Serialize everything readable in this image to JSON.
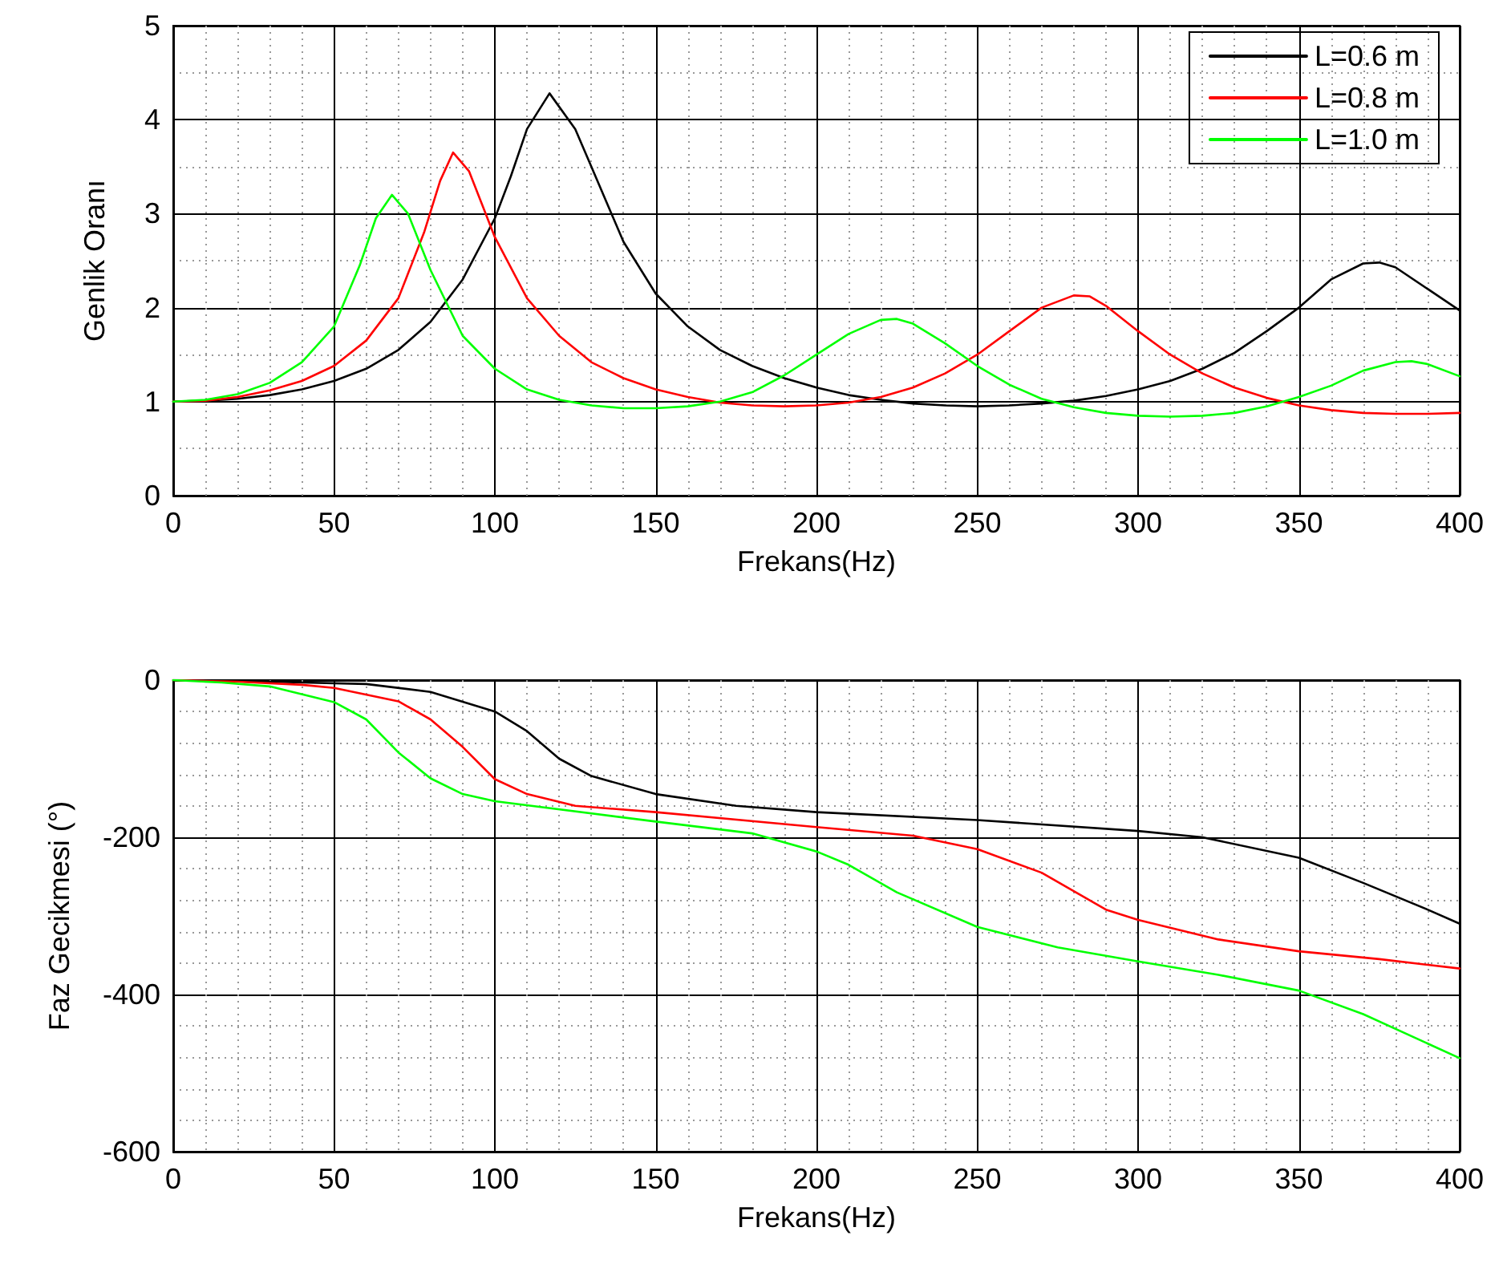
{
  "chart_data": [
    {
      "type": "line",
      "xlabel": "Frekans(Hz)",
      "ylabel": "Genlik Oranı",
      "xlim": [
        0,
        400
      ],
      "xticks": [
        0,
        50,
        100,
        150,
        200,
        250,
        300,
        350,
        400
      ],
      "ylim": [
        0,
        5
      ],
      "yticks": [
        0,
        1,
        2,
        3,
        4,
        5
      ],
      "grid": true,
      "legend": "top right",
      "marker": "none",
      "line_style": "solid",
      "series": [
        {
          "name": "L=0.6 m",
          "color": "#000000",
          "x": [
            0,
            10,
            20,
            30,
            40,
            50,
            60,
            70,
            80,
            90,
            100,
            105,
            110,
            117,
            125,
            130,
            140,
            150,
            160,
            170,
            180,
            190,
            200,
            210,
            220,
            230,
            240,
            250,
            260,
            270,
            280,
            290,
            300,
            310,
            320,
            330,
            340,
            350,
            360,
            370,
            375,
            380,
            390,
            400
          ],
          "values": [
            1,
            1.01,
            1.03,
            1.07,
            1.13,
            1.22,
            1.35,
            1.55,
            1.85,
            2.3,
            2.95,
            3.4,
            3.9,
            4.28,
            3.9,
            3.5,
            2.7,
            2.15,
            1.8,
            1.55,
            1.38,
            1.25,
            1.15,
            1.07,
            1.02,
            0.98,
            0.96,
            0.95,
            0.96,
            0.98,
            1.01,
            1.06,
            1.13,
            1.22,
            1.35,
            1.52,
            1.75,
            2,
            2.3,
            2.47,
            2.48,
            2.43,
            2.2,
            1.97
          ]
        },
        {
          "name": "L=0.8 m",
          "color": "#ff0000",
          "x": [
            0,
            10,
            20,
            30,
            40,
            50,
            60,
            70,
            78,
            83,
            87,
            92,
            100,
            110,
            120,
            130,
            140,
            150,
            160,
            170,
            180,
            190,
            200,
            210,
            220,
            230,
            240,
            250,
            260,
            270,
            280,
            285,
            290,
            300,
            310,
            320,
            330,
            340,
            350,
            360,
            370,
            380,
            390,
            400
          ],
          "values": [
            1,
            1.01,
            1.05,
            1.12,
            1.22,
            1.38,
            1.65,
            2.1,
            2.8,
            3.35,
            3.65,
            3.45,
            2.75,
            2.1,
            1.7,
            1.42,
            1.25,
            1.13,
            1.05,
            0.99,
            0.96,
            0.95,
            0.96,
            0.99,
            1.05,
            1.15,
            1.3,
            1.5,
            1.75,
            2,
            2.13,
            2.12,
            2.02,
            1.75,
            1.5,
            1.3,
            1.15,
            1.04,
            0.96,
            0.91,
            0.88,
            0.87,
            0.87,
            0.88
          ]
        },
        {
          "name": "L=1.0 m",
          "color": "#00ff00",
          "x": [
            0,
            10,
            20,
            30,
            40,
            50,
            58,
            63,
            68,
            73,
            80,
            90,
            100,
            110,
            120,
            130,
            140,
            150,
            160,
            170,
            180,
            190,
            200,
            210,
            220,
            225,
            230,
            240,
            250,
            260,
            270,
            280,
            290,
            300,
            310,
            320,
            330,
            340,
            350,
            360,
            370,
            380,
            385,
            390,
            400
          ],
          "values": [
            1,
            1.02,
            1.08,
            1.2,
            1.42,
            1.8,
            2.45,
            2.95,
            3.2,
            3,
            2.4,
            1.7,
            1.35,
            1.13,
            1.02,
            0.96,
            0.93,
            0.93,
            0.95,
            1,
            1.1,
            1.28,
            1.5,
            1.72,
            1.87,
            1.88,
            1.83,
            1.62,
            1.38,
            1.18,
            1.03,
            0.94,
            0.88,
            0.85,
            0.84,
            0.85,
            0.88,
            0.95,
            1.05,
            1.17,
            1.33,
            1.42,
            1.43,
            1.4,
            1.27
          ]
        }
      ]
    },
    {
      "type": "line",
      "xlabel": "Frekans(Hz)",
      "ylabel": "Faz Gecikmesi (°)",
      "xlim": [
        0,
        400
      ],
      "xticks": [
        0,
        50,
        100,
        150,
        200,
        250,
        300,
        350,
        400
      ],
      "ylim": [
        -600,
        0
      ],
      "yticks": [
        -600,
        -400,
        -200,
        0
      ],
      "grid": true,
      "marker": "none",
      "line_style": "solid",
      "series": [
        {
          "color": "#000000",
          "x": [
            0,
            20,
            40,
            60,
            80,
            100,
            110,
            120,
            130,
            150,
            175,
            200,
            250,
            300,
            320,
            350,
            370,
            390,
            400
          ],
          "values": [
            0,
            -1,
            -3,
            -5,
            -15,
            -40,
            -65,
            -100,
            -122,
            -145,
            -160,
            -168,
            -178,
            -192,
            -200,
            -226,
            -258,
            -292,
            -310
          ]
        },
        {
          "color": "#ff0000",
          "x": [
            0,
            20,
            40,
            50,
            70,
            80,
            90,
            100,
            110,
            125,
            150,
            200,
            230,
            250,
            270,
            290,
            300,
            325,
            350,
            375,
            400
          ],
          "values": [
            0,
            -2,
            -6,
            -10,
            -27,
            -50,
            -85,
            -126,
            -145,
            -160,
            -168,
            -187,
            -198,
            -215,
            -245,
            -292,
            -305,
            -330,
            -345,
            -355,
            -367
          ]
        },
        {
          "color": "#00ff00",
          "x": [
            0,
            15,
            30,
            50,
            60,
            70,
            80,
            90,
            100,
            150,
            180,
            200,
            210,
            225,
            250,
            275,
            300,
            325,
            350,
            370,
            400
          ],
          "values": [
            0,
            -3,
            -8,
            -28,
            -50,
            -92,
            -125,
            -145,
            -154,
            -180,
            -195,
            -218,
            -235,
            -270,
            -314,
            -340,
            -358,
            -375,
            -395,
            -425,
            -481
          ]
        }
      ]
    }
  ]
}
